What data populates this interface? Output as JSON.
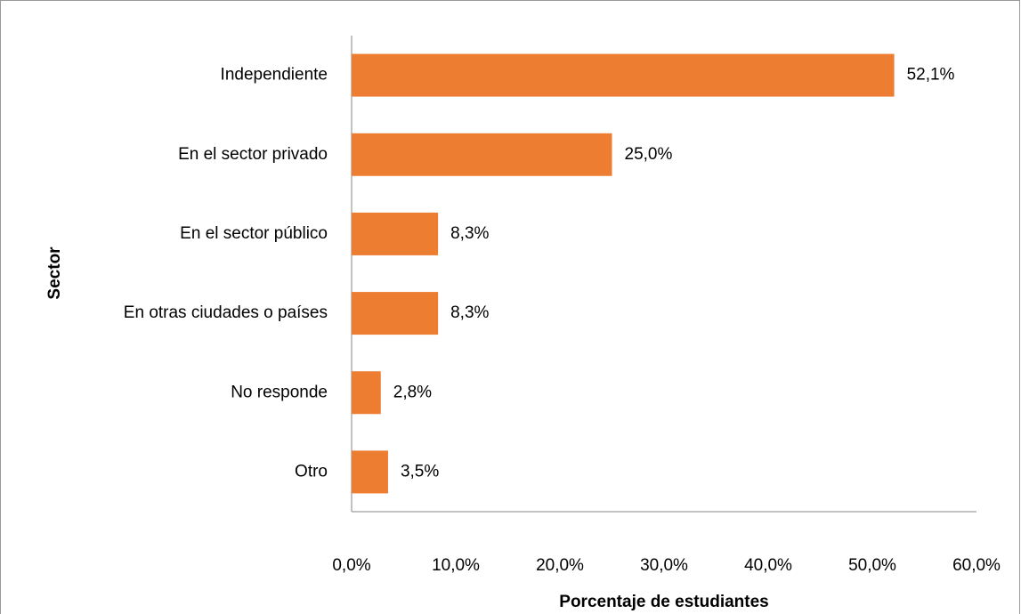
{
  "chart_data": {
    "type": "bar",
    "orientation": "horizontal",
    "xlabel": "Porcentaje de estudiantes",
    "ylabel": "Sector",
    "categories": [
      "Independiente",
      "En el sector privado",
      "En el sector público",
      "En otras ciudades o países",
      "No responde",
      "Otro"
    ],
    "values": [
      52.1,
      25.0,
      8.3,
      8.3,
      2.8,
      3.5
    ],
    "value_labels": [
      "52,1%",
      "25,0%",
      "8,3%",
      "8,3%",
      "2,8%",
      "3,5%"
    ],
    "color": "#ed7d31",
    "xlim": [
      0,
      60
    ],
    "xticks": [
      {
        "value": 0,
        "label": "0,0%"
      },
      {
        "value": 10,
        "label": "10,0%"
      },
      {
        "value": 20,
        "label": "20,0%"
      },
      {
        "value": 30,
        "label": "30,0%"
      },
      {
        "value": 40,
        "label": "40,0%"
      },
      {
        "value": 50,
        "label": "50,0%"
      },
      {
        "value": 60,
        "label": "60,0%"
      }
    ],
    "grid": false
  }
}
